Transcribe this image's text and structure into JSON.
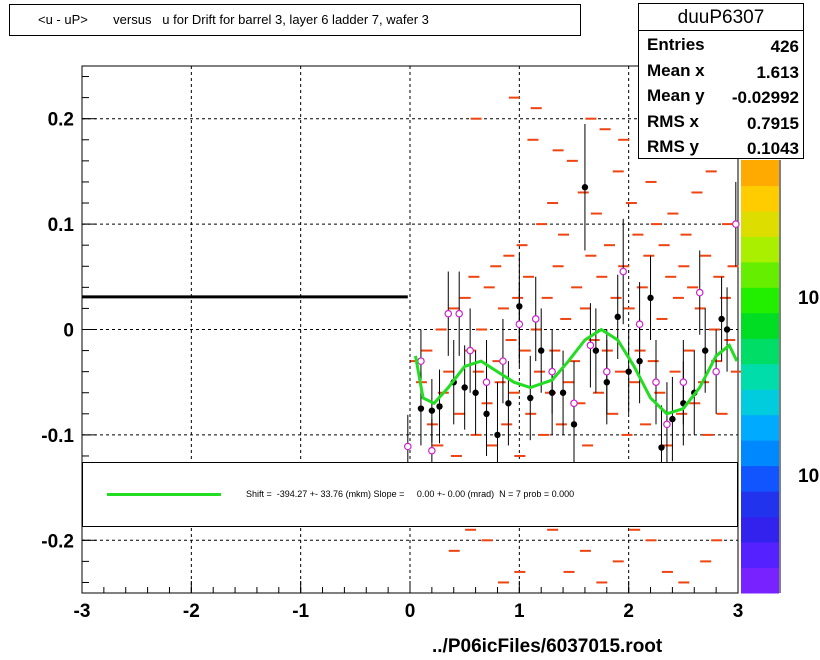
{
  "title": "<u - uP>       versus   u for Drift for barrel 3, layer 6 ladder 7, wafer 3",
  "stats": {
    "name": "duuP6307",
    "rows": [
      {
        "label": "Entries",
        "value": "426"
      },
      {
        "label": "Mean x",
        "value": "1.613"
      },
      {
        "label": "Mean y",
        "value": "-0.02992"
      },
      {
        "label": "RMS x",
        "value": "0.7915"
      },
      {
        "label": "RMS y",
        "value": "0.1043"
      }
    ]
  },
  "legend": {
    "fit_text": "Shift =  -394.27 +- 33.76 (mkm) Slope =     0.00 +- 0.00 (mrad)  N = 7 prob = 0.000",
    "fit_color": "#22dd22"
  },
  "footer": "../P06icFiles/6037015.root",
  "z_axis_labels": [
    "10",
    "10"
  ],
  "colors": {
    "histogram": "#ee4411",
    "profile_filled": "#000000",
    "profile_open": "#cc22cc",
    "fit": "#22dd22",
    "palette": [
      "#7722ff",
      "#5522ff",
      "#3322ee",
      "#2233ee",
      "#1155ff",
      "#0088ff",
      "#00aaff",
      "#00ccdd",
      "#00ddaa",
      "#00dd66",
      "#00dd22",
      "#22ee00",
      "#66ee00",
      "#aaee00",
      "#dddd00",
      "#ffcc00",
      "#ffaa00"
    ]
  },
  "chart_data": {
    "type": "scatter",
    "title": "<u - uP>       versus   u for Drift for barrel 3, layer 6 ladder 7, wafer 3",
    "xlim": [
      -3,
      3
    ],
    "ylim": [
      -0.25,
      0.25
    ],
    "x_ticks": [
      "-3",
      "-2",
      "-1",
      "0",
      "1",
      "2",
      "3"
    ],
    "y_ticks": [
      "-0.2",
      "-0.1",
      "0",
      "0.1",
      "0.2"
    ],
    "grid": true,
    "reference_line": {
      "x": [
        -3,
        -0.02
      ],
      "y": 0.031
    },
    "profile_filled": [
      {
        "x": 0.1,
        "y": -0.075,
        "err": 0.035
      },
      {
        "x": 0.2,
        "y": -0.077,
        "err": 0.03
      },
      {
        "x": 0.27,
        "y": -0.073,
        "err": 0.035
      },
      {
        "x": 0.4,
        "y": -0.05,
        "err": 0.04
      },
      {
        "x": 0.5,
        "y": -0.055,
        "err": 0.04
      },
      {
        "x": 0.6,
        "y": -0.06,
        "err": 0.04
      },
      {
        "x": 0.7,
        "y": -0.08,
        "err": 0.04
      },
      {
        "x": 0.8,
        "y": -0.1,
        "err": 0.05
      },
      {
        "x": 0.9,
        "y": -0.07,
        "err": 0.04
      },
      {
        "x": 1.0,
        "y": 0.022,
        "err": 0.05
      },
      {
        "x": 1.1,
        "y": -0.065,
        "err": 0.04
      },
      {
        "x": 1.2,
        "y": -0.02,
        "err": 0.04
      },
      {
        "x": 1.3,
        "y": -0.06,
        "err": 0.04
      },
      {
        "x": 1.4,
        "y": -0.06,
        "err": 0.04
      },
      {
        "x": 1.5,
        "y": -0.09,
        "err": 0.04
      },
      {
        "x": 1.6,
        "y": 0.135,
        "err": 0.06
      },
      {
        "x": 1.7,
        "y": -0.02,
        "err": 0.04
      },
      {
        "x": 1.8,
        "y": -0.05,
        "err": 0.04
      },
      {
        "x": 1.9,
        "y": 0.012,
        "err": 0.04
      },
      {
        "x": 2.0,
        "y": -0.04,
        "err": 0.04
      },
      {
        "x": 2.1,
        "y": -0.03,
        "err": 0.04
      },
      {
        "x": 2.2,
        "y": 0.03,
        "err": 0.04
      },
      {
        "x": 2.3,
        "y": -0.112,
        "err": 0.04
      },
      {
        "x": 2.4,
        "y": -0.085,
        "err": 0.04
      },
      {
        "x": 2.5,
        "y": -0.07,
        "err": 0.04
      },
      {
        "x": 2.6,
        "y": -0.06,
        "err": 0.04
      },
      {
        "x": 2.7,
        "y": -0.02,
        "err": 0.04
      },
      {
        "x": 2.85,
        "y": 0.01,
        "err": 0.04
      },
      {
        "x": 2.9,
        "y": 0.0,
        "err": 0.04
      }
    ],
    "profile_open": [
      {
        "x": -0.02,
        "y": -0.111,
        "err": 0.03
      },
      {
        "x": 0.1,
        "y": -0.03,
        "err": 0.03
      },
      {
        "x": 0.2,
        "y": -0.115,
        "err": 0.03
      },
      {
        "x": 0.35,
        "y": 0.015,
        "err": 0.04
      },
      {
        "x": 0.45,
        "y": 0.015,
        "err": 0.04
      },
      {
        "x": 0.55,
        "y": -0.02,
        "err": 0.04
      },
      {
        "x": 0.7,
        "y": -0.05,
        "err": 0.04
      },
      {
        "x": 0.85,
        "y": -0.03,
        "err": 0.04
      },
      {
        "x": 1.0,
        "y": 0.005,
        "err": 0.04
      },
      {
        "x": 1.15,
        "y": 0.01,
        "err": 0.04
      },
      {
        "x": 1.3,
        "y": -0.04,
        "err": 0.04
      },
      {
        "x": 1.5,
        "y": -0.07,
        "err": 0.04
      },
      {
        "x": 1.65,
        "y": -0.015,
        "err": 0.04
      },
      {
        "x": 1.8,
        "y": -0.04,
        "err": 0.04
      },
      {
        "x": 1.95,
        "y": 0.055,
        "err": 0.05
      },
      {
        "x": 2.1,
        "y": 0.005,
        "err": 0.04
      },
      {
        "x": 2.25,
        "y": -0.05,
        "err": 0.04
      },
      {
        "x": 2.35,
        "y": -0.09,
        "err": 0.04
      },
      {
        "x": 2.5,
        "y": -0.05,
        "err": 0.04
      },
      {
        "x": 2.65,
        "y": 0.035,
        "err": 0.04
      },
      {
        "x": 2.8,
        "y": -0.04,
        "err": 0.04
      },
      {
        "x": 2.98,
        "y": 0.1,
        "err": 0.04
      }
    ],
    "fit_curve": [
      {
        "x": 0.05,
        "y": -0.025
      },
      {
        "x": 0.12,
        "y": -0.065
      },
      {
        "x": 0.22,
        "y": -0.07
      },
      {
        "x": 0.35,
        "y": -0.055
      },
      {
        "x": 0.5,
        "y": -0.035
      },
      {
        "x": 0.65,
        "y": -0.03
      },
      {
        "x": 0.8,
        "y": -0.04
      },
      {
        "x": 0.95,
        "y": -0.05
      },
      {
        "x": 1.1,
        "y": -0.055
      },
      {
        "x": 1.3,
        "y": -0.048
      },
      {
        "x": 1.45,
        "y": -0.03
      },
      {
        "x": 1.6,
        "y": -0.01
      },
      {
        "x": 1.75,
        "y": 0.0
      },
      {
        "x": 1.9,
        "y": -0.01
      },
      {
        "x": 2.05,
        "y": -0.035
      },
      {
        "x": 2.2,
        "y": -0.065
      },
      {
        "x": 2.35,
        "y": -0.08
      },
      {
        "x": 2.5,
        "y": -0.075
      },
      {
        "x": 2.65,
        "y": -0.055
      },
      {
        "x": 2.8,
        "y": -0.025
      },
      {
        "x": 2.92,
        "y": -0.015
      },
      {
        "x": 2.99,
        "y": -0.03
      }
    ],
    "histogram_cells": [
      [
        0.05,
        -0.03
      ],
      [
        0.1,
        -0.05
      ],
      [
        0.15,
        -0.02
      ],
      [
        0.2,
        -0.09
      ],
      [
        0.25,
        -0.11
      ],
      [
        0.28,
        0.0
      ],
      [
        0.3,
        -0.06
      ],
      [
        0.35,
        -0.04
      ],
      [
        0.4,
        0.02
      ],
      [
        0.42,
        -0.12
      ],
      [
        0.45,
        -0.08
      ],
      [
        0.5,
        0.03
      ],
      [
        0.55,
        -0.02
      ],
      [
        0.58,
        0.05
      ],
      [
        0.6,
        -0.1
      ],
      [
        0.62,
        -0.04
      ],
      [
        0.65,
        0.0
      ],
      [
        0.7,
        -0.07
      ],
      [
        0.72,
        0.04
      ],
      [
        0.75,
        -0.11
      ],
      [
        0.78,
        0.06
      ],
      [
        0.8,
        -0.03
      ],
      [
        0.82,
        -0.05
      ],
      [
        0.85,
        0.02
      ],
      [
        0.88,
        -0.09
      ],
      [
        0.9,
        0.07
      ],
      [
        0.92,
        -0.01
      ],
      [
        0.95,
        -0.06
      ],
      [
        0.98,
        0.03
      ],
      [
        1.0,
        -0.12
      ],
      [
        1.02,
        0.08
      ],
      [
        1.05,
        -0.02
      ],
      [
        1.08,
        0.05
      ],
      [
        1.1,
        -0.08
      ],
      [
        1.12,
        0.18
      ],
      [
        1.15,
        0.0
      ],
      [
        1.18,
        -0.04
      ],
      [
        1.2,
        0.1
      ],
      [
        1.22,
        -0.1
      ],
      [
        1.25,
        0.03
      ],
      [
        1.28,
        -0.06
      ],
      [
        1.3,
        0.12
      ],
      [
        1.32,
        -0.02
      ],
      [
        1.35,
        0.06
      ],
      [
        1.38,
        -0.09
      ],
      [
        1.4,
        0.09
      ],
      [
        1.42,
        0.01
      ],
      [
        1.45,
        -0.05
      ],
      [
        1.48,
        0.16
      ],
      [
        1.5,
        -0.03
      ],
      [
        1.52,
        0.04
      ],
      [
        1.55,
        -0.07
      ],
      [
        1.58,
        0.13
      ],
      [
        1.6,
        0.02
      ],
      [
        1.62,
        -0.11
      ],
      [
        1.65,
        0.07
      ],
      [
        1.68,
        -0.01
      ],
      [
        1.7,
        0.11
      ],
      [
        1.72,
        -0.06
      ],
      [
        1.75,
        0.05
      ],
      [
        1.78,
        0.19
      ],
      [
        1.8,
        -0.02
      ],
      [
        1.82,
        0.08
      ],
      [
        1.85,
        -0.08
      ],
      [
        1.88,
        0.03
      ],
      [
        1.9,
        0.15
      ],
      [
        1.92,
        -0.04
      ],
      [
        1.95,
        0.06
      ],
      [
        1.98,
        -0.1
      ],
      [
        2.0,
        0.02
      ],
      [
        2.02,
        0.12
      ],
      [
        2.05,
        -0.05
      ],
      [
        2.08,
        0.09
      ],
      [
        2.1,
        -0.02
      ],
      [
        2.12,
        0.04
      ],
      [
        2.15,
        -0.09
      ],
      [
        2.18,
        0.07
      ],
      [
        2.2,
        0.14
      ],
      [
        2.22,
        -0.03
      ],
      [
        2.25,
        0.1
      ],
      [
        2.28,
        -0.06
      ],
      [
        2.3,
        0.01
      ],
      [
        2.32,
        0.08
      ],
      [
        2.35,
        -0.11
      ],
      [
        2.38,
        0.05
      ],
      [
        2.4,
        0.11
      ],
      [
        2.42,
        -0.04
      ],
      [
        2.45,
        0.03
      ],
      [
        2.48,
        -0.08
      ],
      [
        2.5,
        0.06
      ],
      [
        2.52,
        0.09
      ],
      [
        2.55,
        -0.02
      ],
      [
        2.58,
        0.04
      ],
      [
        2.6,
        -0.07
      ],
      [
        2.62,
        0.13
      ],
      [
        2.65,
        0.02
      ],
      [
        2.68,
        -0.05
      ],
      [
        2.7,
        0.07
      ],
      [
        2.72,
        -0.1
      ],
      [
        2.75,
        0.15
      ],
      [
        2.78,
        0.0
      ],
      [
        2.8,
        -0.03
      ],
      [
        2.82,
        0.05
      ],
      [
        2.85,
        -0.08
      ],
      [
        2.88,
        0.03
      ],
      [
        2.9,
        0.1
      ],
      [
        2.92,
        -0.01
      ],
      [
        2.95,
        0.06
      ],
      [
        2.98,
        -0.04
      ],
      [
        0.6,
        0.2
      ],
      [
        0.95,
        0.22
      ],
      [
        1.15,
        0.21
      ],
      [
        1.35,
        0.17
      ],
      [
        1.65,
        0.2
      ],
      [
        1.95,
        0.18
      ],
      [
        2.25,
        0.2
      ],
      [
        2.6,
        0.17
      ],
      [
        0.7,
        -0.2
      ],
      [
        1.0,
        -0.23
      ],
      [
        1.3,
        -0.19
      ],
      [
        1.6,
        -0.21
      ],
      [
        1.9,
        -0.22
      ],
      [
        2.2,
        -0.2
      ],
      [
        2.5,
        -0.24
      ],
      [
        2.8,
        -0.2
      ],
      [
        0.4,
        -0.21
      ],
      [
        0.85,
        -0.24
      ],
      [
        1.45,
        -0.23
      ],
      [
        2.05,
        -0.19
      ],
      [
        2.35,
        -0.23
      ],
      [
        2.7,
        -0.22
      ],
      [
        0.55,
        -0.19
      ],
      [
        1.75,
        -0.24
      ]
    ]
  }
}
